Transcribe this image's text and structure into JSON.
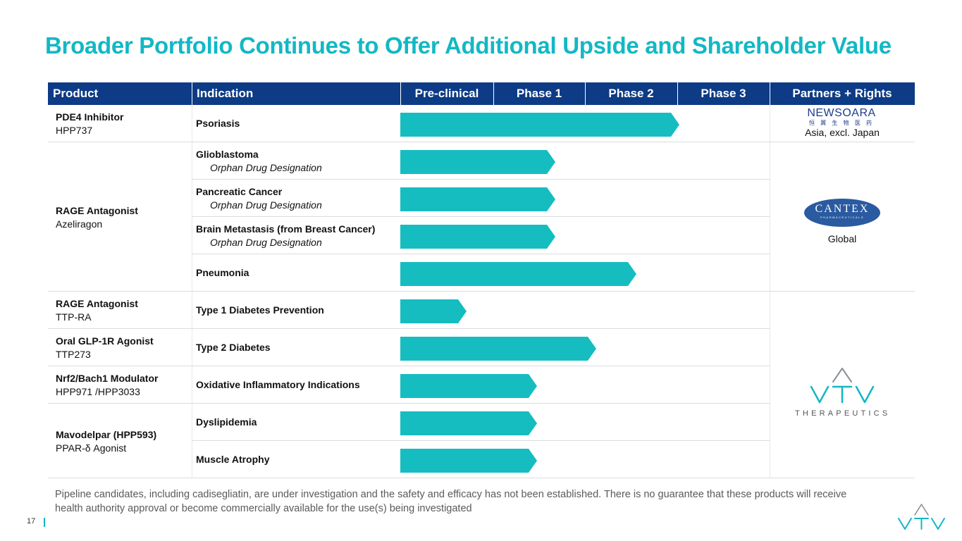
{
  "slide": {
    "title": "Broader Portfolio Continues to Offer Additional Upside and Shareholder Value",
    "page_number": "17",
    "footnote": "Pipeline candidates, including cadisegliatin, are under investigation and the safety and efficacy has not been established. There is no guarantee that these products will receive health authority approval or become commercially available for the use(s) being investigated"
  },
  "table": {
    "headers": {
      "product": "Product",
      "indication": "Indication",
      "preclinical": "Pre-clinical",
      "phase1": "Phase 1",
      "phase2": "Phase 2",
      "phase3": "Phase 3",
      "partners": "Partners + Rights"
    },
    "products": [
      {
        "name": "PDE4 Inhibitor",
        "code": "HPP737"
      },
      {
        "name": "RAGE Antagonist",
        "code": "Azeliragon"
      },
      {
        "name": "RAGE Antagonist",
        "code": "TTP-RA"
      },
      {
        "name": "Oral GLP-1R Agonist",
        "code": "TTP273"
      },
      {
        "name": "Nrf2/Bach1 Modulator",
        "code": "HPP971 /HPP3033"
      },
      {
        "name": "Mavodelpar (HPP593)",
        "code": "PPAR-δ Agonist"
      }
    ],
    "indications": [
      {
        "name": "Psoriasis",
        "note": "",
        "progress": 0.755
      },
      {
        "name": "Glioblastoma",
        "note": "Orphan Drug Designation",
        "progress": 0.42
      },
      {
        "name": "Pancreatic Cancer",
        "note": "Orphan Drug Designation",
        "progress": 0.42
      },
      {
        "name": "Brain Metastasis (from Breast Cancer)",
        "note": "Orphan Drug Designation",
        "progress": 0.42
      },
      {
        "name": "Pneumonia",
        "note": "",
        "progress": 0.64
      },
      {
        "name": "Type 1 Diabetes Prevention",
        "note": "",
        "progress": 0.18
      },
      {
        "name": "Type 2 Diabetes",
        "note": "",
        "progress": 0.53
      },
      {
        "name": "Oxidative Inflammatory Indications",
        "note": "",
        "progress": 0.37
      },
      {
        "name": "Dyslipidemia",
        "note": "",
        "progress": 0.37
      },
      {
        "name": "Muscle Atrophy",
        "note": "",
        "progress": 0.37
      }
    ],
    "partners": [
      {
        "logo_text": "NEWSOARA",
        "logo_subtext": "恒 翼 生 物 医 药",
        "rights": "Asia, excl. Japan"
      },
      {
        "logo_text": "CANTEX",
        "logo_subtext": "PHARMACEUTICALS",
        "rights": "Global"
      },
      {
        "logo_text": "THERAPEUTICS",
        "logo_subtext": "",
        "rights": ""
      }
    ]
  },
  "colors": {
    "title": "#12b8c4",
    "header_bg": "#0d3b85",
    "bar": "#15bdc1",
    "cantex_logo": "#2a5aa0"
  }
}
